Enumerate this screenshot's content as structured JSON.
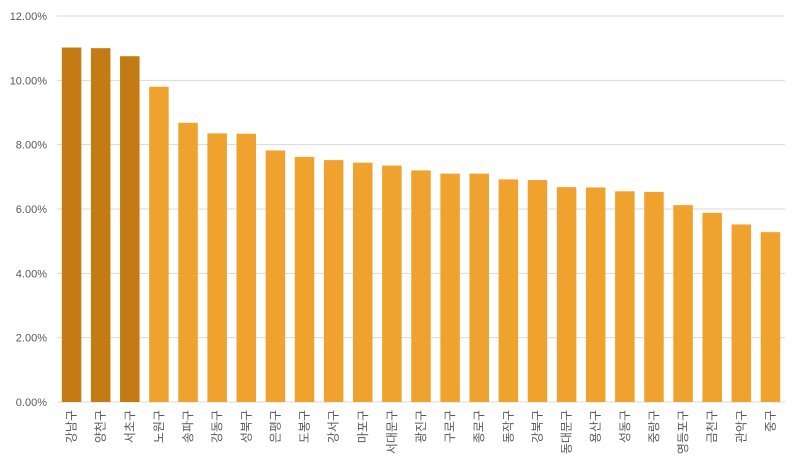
{
  "chart_data": {
    "type": "bar",
    "title": "",
    "xlabel": "",
    "ylabel": "",
    "ylim": [
      0,
      12
    ],
    "y_ticks": [
      "0.00%",
      "2.00%",
      "4.00%",
      "6.00%",
      "8.00%",
      "10.00%",
      "12.00%"
    ],
    "grid": true,
    "categories": [
      "강남구",
      "양천구",
      "서초구",
      "노원구",
      "송파구",
      "강동구",
      "성북구",
      "은평구",
      "도봉구",
      "강서구",
      "마포구",
      "서대문구",
      "광진구",
      "구로구",
      "종로구",
      "동작구",
      "강북구",
      "동대문구",
      "용산구",
      "성동구",
      "중랑구",
      "영등포구",
      "금천구",
      "관악구",
      "중구"
    ],
    "values": [
      11.02,
      11.0,
      10.75,
      9.8,
      8.68,
      8.35,
      8.34,
      7.82,
      7.62,
      7.52,
      7.44,
      7.35,
      7.2,
      7.1,
      7.1,
      6.92,
      6.9,
      6.68,
      6.67,
      6.55,
      6.53,
      6.12,
      5.88,
      5.52,
      5.28
    ],
    "colors": {
      "highlight": "#c57b14",
      "default": "#f0a22e"
    },
    "highlight_count": 3
  }
}
